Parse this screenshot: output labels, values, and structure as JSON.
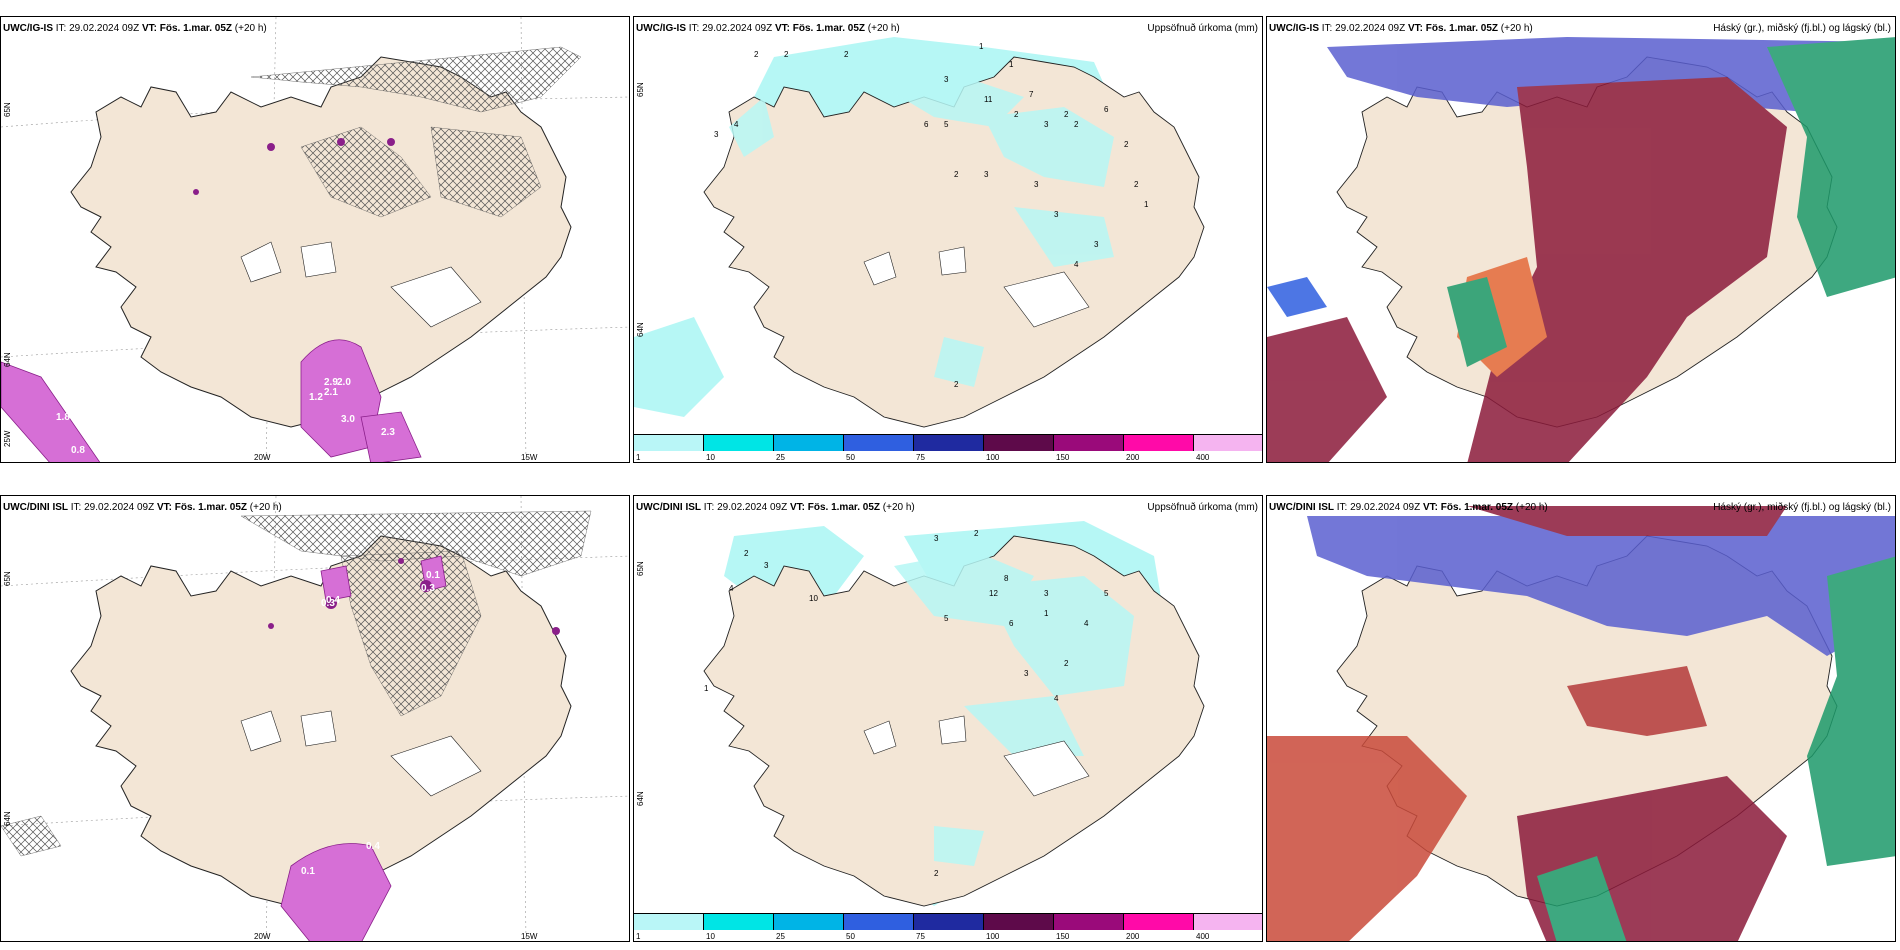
{
  "colors": {
    "land": "#f3e6d6",
    "coast": "#222222",
    "snow_light": "#e8a0e8",
    "snow_dark": "#8a1f8a",
    "precip_light": "#b6f7f5",
    "cloud_high": "#8b1a3a",
    "cloud_mid": "#5a5fd0",
    "cloud_low": "#1d9a6a"
  },
  "panels": [
    {
      "model": "UWC/IG-IS",
      "it_label": "IT:",
      "it_value": "29.02.2024 09Z",
      "vt_label": "VT:",
      "vt_value": "Fös. 1.mar. 05Z",
      "lead": "(+20 h)",
      "right_title": "",
      "labels": [
        "2.9",
        "2.0",
        "1.2",
        "2.1",
        "3.0",
        "2.3",
        "0.8",
        "1.8"
      ],
      "axis": {
        "lat_top": "65N",
        "lat_bot": "64N",
        "lon_left": "20W",
        "lon_right": "15W",
        "lat_left_low": "25W"
      }
    },
    {
      "model": "UWC/IG-IS",
      "it_label": "IT:",
      "it_value": "29.02.2024 09Z",
      "vt_label": "VT:",
      "vt_value": "Fös. 1.mar. 05Z",
      "lead": "(+20 h)",
      "right_title": "Uppsöfnuð úrkoma (mm)",
      "labels": [
        "2",
        "2",
        "2",
        "1",
        "3",
        "5",
        "6",
        "4",
        "3",
        "1",
        "2",
        "3",
        "2",
        "6",
        "2",
        "11",
        "7",
        "2",
        "2",
        "1",
        "3",
        "3",
        "2",
        "3",
        "3",
        "4",
        "2"
      ],
      "axis": {
        "lat_top": "65N",
        "lat_bot": "64N"
      }
    },
    {
      "model": "UWC/IG-IS",
      "it_label": "IT:",
      "it_value": "29.02.2024 09Z",
      "vt_label": "VT:",
      "vt_value": "Fös. 1.mar. 05Z",
      "lead": "(+20 h)",
      "right_title": "Háský (gr.), miðský (fj.bl.) og lágský (bl.)"
    },
    {
      "model": "UWC/DINI ISL",
      "it_label": "IT:",
      "it_value": "29.02.2024 09Z",
      "vt_label": "VT:",
      "vt_value": "Fös. 1.mar. 05Z",
      "lead": "(+20 h)",
      "right_title": "",
      "labels": [
        "0.3",
        "0.3",
        "0.4",
        "0.4",
        "0.1",
        "0.1"
      ],
      "axis": {
        "lat_top": "65N",
        "lat_bot": "64N",
        "lon_left": "20W",
        "lon_right": "15W"
      }
    },
    {
      "model": "UWC/DINI ISL",
      "it_label": "IT:",
      "it_value": "29.02.2024 09Z",
      "vt_label": "VT:",
      "vt_value": "Fös. 1.mar. 05Z",
      "lead": "(+20 h)",
      "right_title": "Uppsöfnuð úrkoma (mm)",
      "labels": [
        "2",
        "3",
        "4",
        "1",
        "10",
        "12",
        "8",
        "6",
        "3",
        "2",
        "5",
        "3",
        "4",
        "2",
        "5",
        "3",
        "4",
        "1",
        "2"
      ],
      "axis": {
        "lat_top": "65N",
        "lat_bot": "64N"
      }
    },
    {
      "model": "UWC/DINI ISL",
      "it_label": "IT:",
      "it_value": "29.02.2024 09Z",
      "vt_label": "VT:",
      "vt_value": "Fös. 1.mar. 05Z",
      "lead": "(+20 h)",
      "right_title": "Háský (gr.), miðský (fj.bl.) og lágský (bl.)"
    }
  ],
  "legend": {
    "colors": [
      "#b9f6f7",
      "#00e5e5",
      "#00b4e6",
      "#2f5fe0",
      "#1f2aa0",
      "#5e0a4a",
      "#9a0a7a",
      "#ff0aa8",
      "#f5b4f0"
    ],
    "labels": [
      "1",
      "10",
      "25",
      "50",
      "75",
      "100",
      "150",
      "200",
      "400"
    ]
  }
}
